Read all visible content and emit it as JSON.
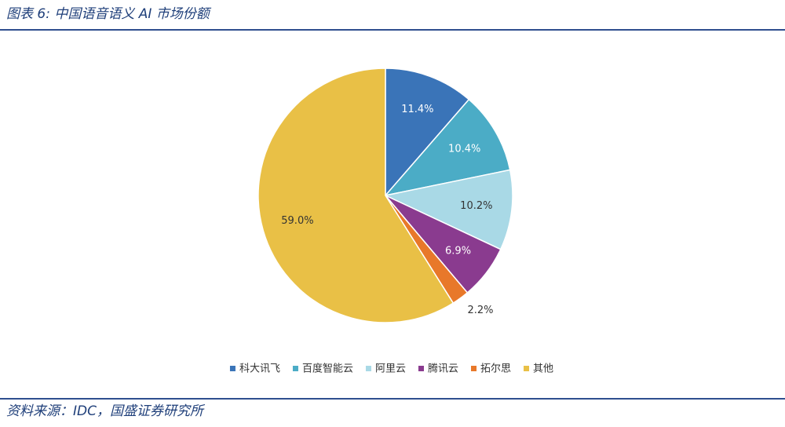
{
  "chart_data": {
    "type": "pie",
    "title": "图表 6:  中国语音语义 AI 市场份额",
    "categories": [
      "科大讯飞",
      "百度智能云",
      "阿里云",
      "腾讯云",
      "拓尔思",
      "其他"
    ],
    "values": [
      11.4,
      10.4,
      10.2,
      6.9,
      2.2,
      59.0
    ],
    "value_labels": [
      "11.4%",
      "10.4%",
      "10.2%",
      "6.9%",
      "2.2%",
      "59.0%"
    ],
    "colors": [
      "#3a74b8",
      "#4bacc6",
      "#a9d9e6",
      "#8a3b8f",
      "#e8782a",
      "#e9c046"
    ],
    "legend": "bottom",
    "source": "资料来源：IDC，国盛证券研究所"
  }
}
